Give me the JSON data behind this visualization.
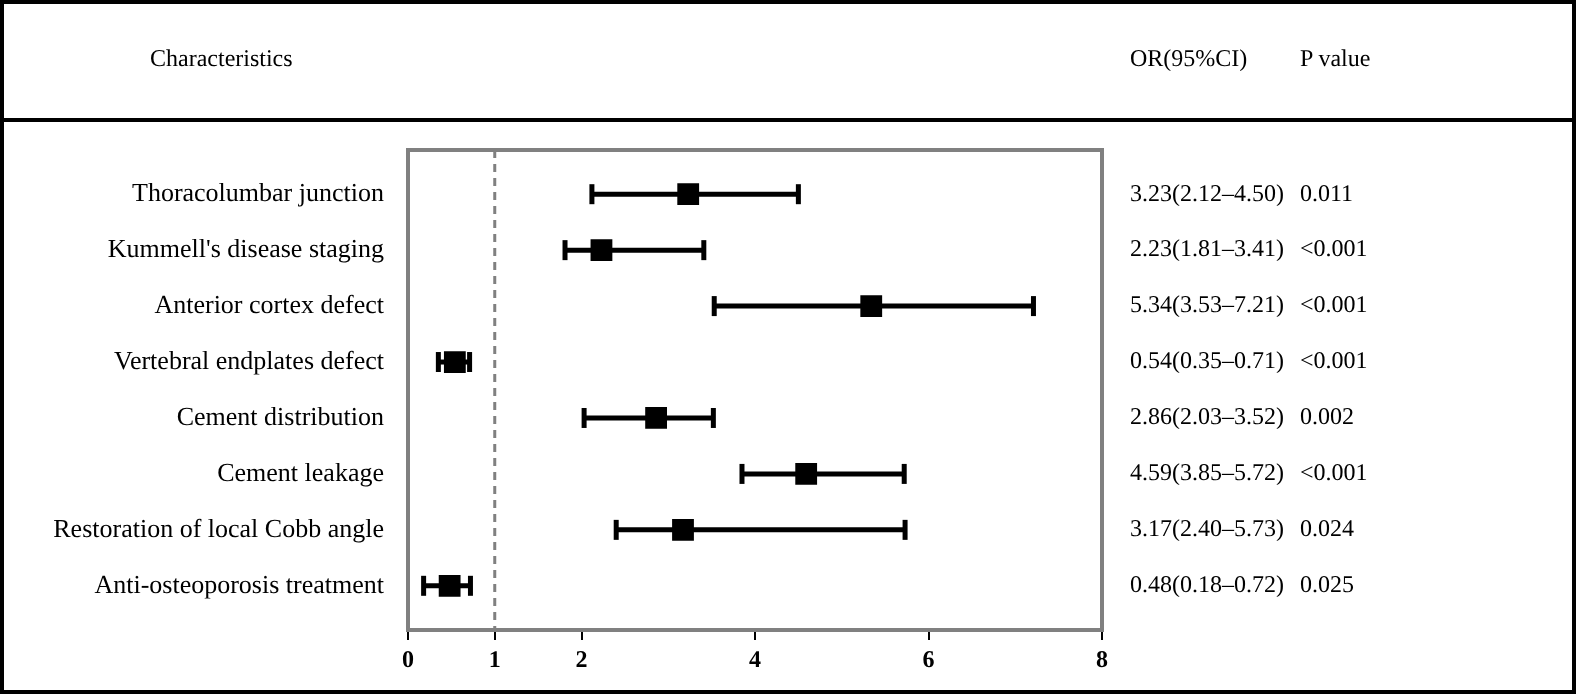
{
  "chart_data": {
    "type": "scatter",
    "orientation": "horizontal",
    "ylabel": "Characteristics",
    "categories": [
      "Thoracolumbar junction",
      "Kummell's disease staging",
      "Anterior cortex defect",
      "Vertebral endplates defect",
      "Cement distribution",
      "Cement leakage",
      "Restoration of local Cobb angle",
      "Anti-osteoporosis treatment"
    ],
    "values": [
      3.23,
      2.23,
      5.34,
      0.54,
      2.86,
      4.59,
      3.17,
      0.48
    ],
    "errors": [
      [
        2.12,
        4.5
      ],
      [
        1.81,
        3.41
      ],
      [
        3.53,
        7.21
      ],
      [
        0.35,
        0.71
      ],
      [
        2.03,
        3.52
      ],
      [
        3.85,
        5.72
      ],
      [
        2.4,
        5.73
      ],
      [
        0.18,
        0.72
      ]
    ],
    "value_labels": [
      "3.23(2.12–4.50)",
      "2.23(1.81–3.41)",
      "5.34(3.53–7.21)",
      "0.54(0.35–0.71)",
      "2.86(2.03–3.52)",
      "4.59(3.85–5.72)",
      "3.17(2.40–5.73)",
      "0.48(0.18–0.72)"
    ],
    "annotations": [
      "OR(95%CI)",
      "P value",
      "0.011",
      "<0.001",
      "<0.001",
      "<0.001",
      "0.002",
      "<0.001",
      "0.024",
      "0.025"
    ],
    "color": "#000000",
    "marker": "square",
    "xlim": [
      0,
      8
    ],
    "xticks": [
      0,
      1,
      2,
      4,
      6,
      8
    ],
    "ref_lines": [
      {
        "axis": "x",
        "value": 1,
        "color": "#808080",
        "line_style": "dashed"
      }
    ],
    "grid": false,
    "legend": false
  }
}
